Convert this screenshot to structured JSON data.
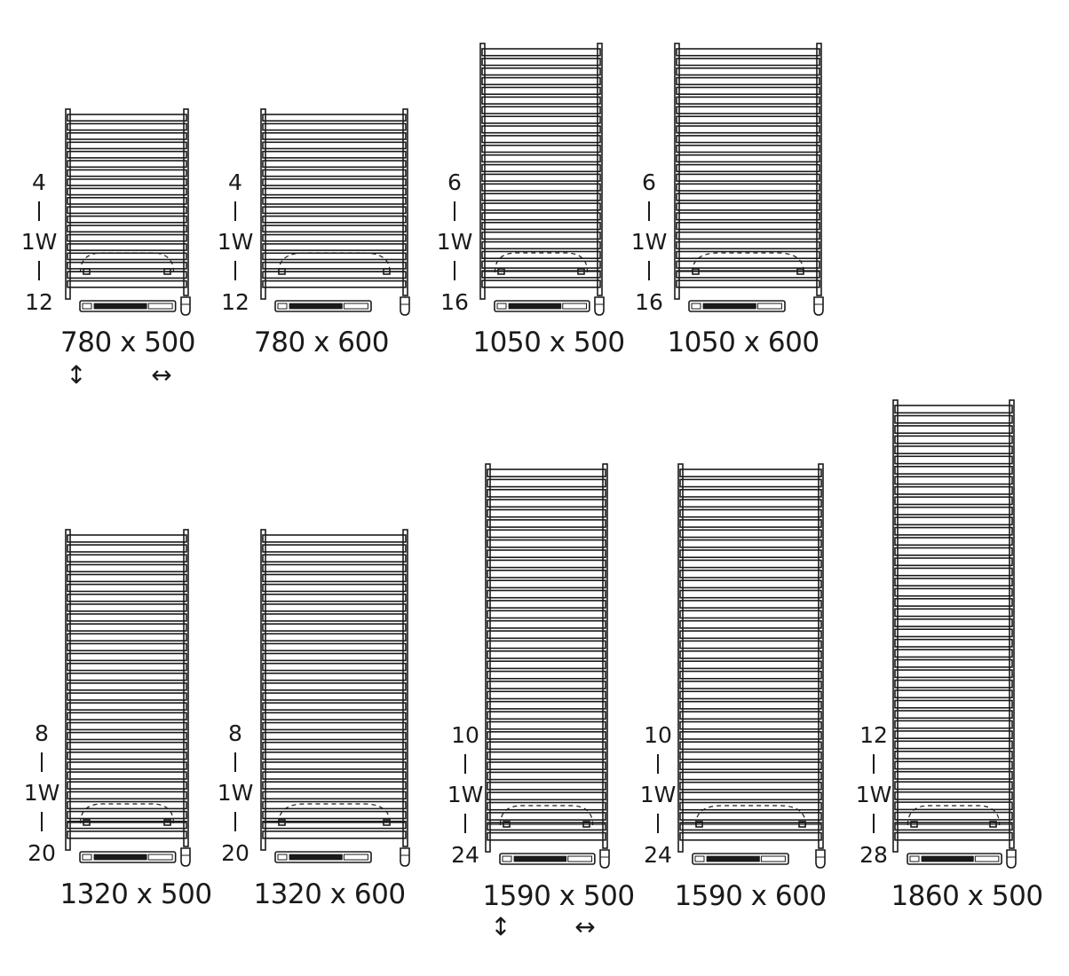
{
  "colors": {
    "line": "#1a1a1a",
    "background": "#ffffff"
  },
  "icons": {
    "height": "vertical-double-arrow-icon",
    "width": "horizontal-double-arrow-icon"
  },
  "arrow_glyphs": {
    "height": "↕",
    "width": "↔"
  },
  "radiators": [
    {
      "size": "780 x 500",
      "top": "4",
      "middle": "1W",
      "bottom": "12",
      "bars": 19
    },
    {
      "size": "780 x 600",
      "top": "4",
      "middle": "1W",
      "bottom": "12",
      "bars": 19
    },
    {
      "size": "1050 x 500",
      "top": "6",
      "middle": "1W",
      "bottom": "16",
      "bars": 25
    },
    {
      "size": "1050 x 600",
      "top": "6",
      "middle": "1W",
      "bottom": "16",
      "bars": 25
    },
    {
      "size": "1320 x 500",
      "top": "8",
      "middle": "1W",
      "bottom": "20",
      "bars": 31
    },
    {
      "size": "1320 x 600",
      "top": "8",
      "middle": "1W",
      "bottom": "20",
      "bars": 31
    },
    {
      "size": "1590 x 500",
      "top": "10",
      "middle": "1W",
      "bottom": "24",
      "bars": 37
    },
    {
      "size": "1590 x 600",
      "top": "10",
      "middle": "1W",
      "bottom": "24",
      "bars": 37
    },
    {
      "size": "1860 x 500",
      "top": "12",
      "middle": "1W",
      "bottom": "28",
      "bars": 43
    }
  ]
}
